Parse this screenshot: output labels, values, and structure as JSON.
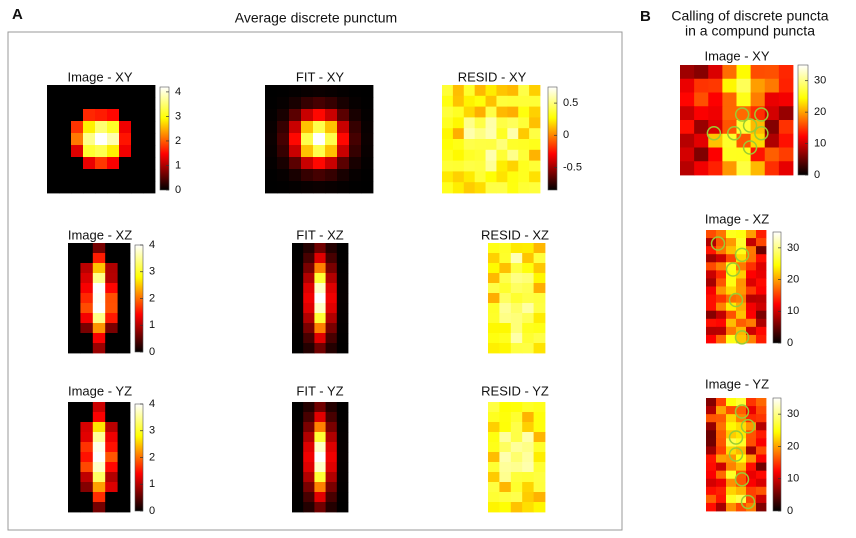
{
  "panels": [
    {
      "letter": "A",
      "title": "Average discrete punctum",
      "plots": [
        {
          "title": "Image - XY",
          "colorbar": {
            "range": [
              0,
              4.2
            ],
            "ticks": [
              4,
              3,
              2,
              1,
              0
            ]
          }
        },
        {
          "title": "FIT - XY"
        },
        {
          "title": "RESID - XY",
          "colorbar": {
            "range": [
              -0.85,
              0.75
            ],
            "ticks": [
              0.5,
              0,
              -0.5
            ]
          }
        },
        {
          "title": "Image - XZ",
          "colorbar": {
            "range": [
              0,
              4
            ],
            "ticks": [
              4,
              3,
              2,
              1,
              0
            ]
          }
        },
        {
          "title": "FIT - XZ"
        },
        {
          "title": "RESID - XZ"
        },
        {
          "title": "Image - YZ",
          "colorbar": {
            "range": [
              0,
              4
            ],
            "ticks": [
              4,
              3,
              2,
              1,
              0
            ]
          }
        },
        {
          "title": "FIT - YZ"
        },
        {
          "title": "RESID - YZ"
        }
      ]
    },
    {
      "letter": "B",
      "title_lines": [
        "Calling of discrete puncta",
        "in a compund puncta"
      ],
      "plots": [
        {
          "title": "Image - XY",
          "colorbar": {
            "range": [
              0,
              35
            ],
            "ticks": [
              30,
              20,
              10,
              0
            ]
          }
        },
        {
          "title": "Image - XZ",
          "colorbar": {
            "range": [
              0,
              35
            ],
            "ticks": [
              30,
              20,
              10,
              0
            ]
          }
        },
        {
          "title": "Image - YZ",
          "colorbar": {
            "range": [
              0,
              35
            ],
            "ticks": [
              30,
              20,
              10,
              0
            ]
          }
        }
      ]
    }
  ]
}
